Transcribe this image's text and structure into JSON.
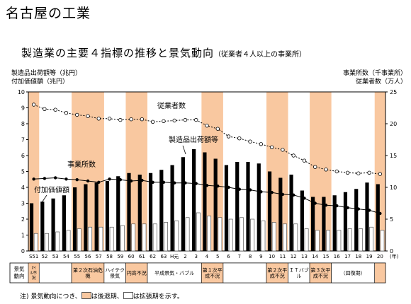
{
  "page": {
    "title": "名古屋の工業"
  },
  "chart": {
    "title": "製造業の主要４指標の推移と景気動向",
    "subtitle": "（従業者４人以上の事業所）",
    "left_axis_title_1": "製造品出荷額等（兆円）",
    "left_axis_title_2": "付加価値額（兆円）",
    "right_axis_title_1": "事業所数（千事業所）",
    "right_axis_title_2": "従業者数（万人）",
    "year_unit": "(年)",
    "row_label": "景気\n動向",
    "note": {
      "prefix": "注) 景気動向につき、",
      "recession": "は後退期、",
      "expansion": "は拡張期を示す。"
    }
  },
  "chart_data": {
    "type": "bar",
    "categories": [
      "S51",
      "52",
      "53",
      "54",
      "55",
      "56",
      "57",
      "58",
      "59",
      "60",
      "61",
      "62",
      "63",
      "H元",
      "2",
      "3",
      "4",
      "5",
      "6",
      "7",
      "8",
      "9",
      "10",
      "11",
      "12",
      "13",
      "14",
      "15",
      "16",
      "17",
      "18",
      "19",
      "20"
    ],
    "left_ylim": [
      0,
      10
    ],
    "left_yticks": [
      0,
      1,
      2,
      3,
      4,
      5,
      6,
      7,
      8,
      9,
      10
    ],
    "right_ylim": [
      0,
      25
    ],
    "right_yticks": [
      0,
      5,
      10,
      15,
      20,
      25
    ],
    "series": [
      {
        "name": "製造品出荷額等",
        "axis": "left",
        "kind": "bar",
        "color": "#000000",
        "values": [
          3.0,
          3.1,
          3.3,
          3.5,
          4.0,
          4.2,
          4.3,
          4.4,
          4.7,
          4.9,
          4.8,
          4.9,
          5.1,
          5.4,
          5.9,
          6.4,
          6.2,
          5.8,
          5.4,
          5.6,
          5.6,
          5.5,
          5.0,
          4.6,
          4.8,
          3.8,
          3.4,
          3.4,
          3.5,
          3.7,
          3.9,
          4.3,
          4.2
        ]
      },
      {
        "name": "付加価値額",
        "axis": "left",
        "kind": "bar",
        "color": "#ffffff",
        "values": [
          1.1,
          1.1,
          1.2,
          1.3,
          1.4,
          1.5,
          1.5,
          1.5,
          1.6,
          1.7,
          1.7,
          1.7,
          1.8,
          1.9,
          2.1,
          2.4,
          2.2,
          2.1,
          2.0,
          2.1,
          2.0,
          1.9,
          1.8,
          1.7,
          1.7,
          1.4,
          1.3,
          1.3,
          1.3,
          1.4,
          1.4,
          1.5,
          1.3
        ]
      },
      {
        "name": "従業者数",
        "axis": "right",
        "kind": "line",
        "style": "dotted",
        "values": [
          23,
          22.3,
          22.2,
          21.7,
          21.4,
          21.2,
          20.8,
          20.8,
          20.6,
          20.7,
          20.7,
          20.3,
          20.4,
          20.5,
          20.6,
          20.6,
          19.7,
          19.2,
          18.0,
          17.7,
          17.2,
          16.8,
          16.3,
          15.9,
          15.0,
          14.2,
          13.2,
          12.8,
          12.5,
          12.3,
          12.2,
          12.3,
          12.1
        ]
      },
      {
        "name": "事業所数",
        "axis": "right",
        "kind": "line",
        "style": "solid",
        "values": [
          11.3,
          11.4,
          11.5,
          11.3,
          11.2,
          11.0,
          10.8,
          11.3,
          11.2,
          11.0,
          11.1,
          10.8,
          10.8,
          10.7,
          10.7,
          10.6,
          10.3,
          10.2,
          10.0,
          9.7,
          9.6,
          9.3,
          9.2,
          8.9,
          8.8,
          8.3,
          7.5,
          7.2,
          7.1,
          6.8,
          6.6,
          6.4,
          5.9
        ]
      }
    ],
    "annotations": [
      {
        "text": "従業者数"
      },
      {
        "text": "製造品出荷額等"
      },
      {
        "text": "事業所数"
      },
      {
        "text": "付加価値額"
      }
    ],
    "cycles": [
      {
        "type": "recession",
        "start": 0,
        "end": 0,
        "label": "ｵｲﾙ不況"
      },
      {
        "type": "expansion",
        "start": 1,
        "end": 3,
        "label": ""
      },
      {
        "type": "recession",
        "start": 4,
        "end": 6,
        "label": "第２次石油危機"
      },
      {
        "type": "expansion",
        "start": 7,
        "end": 8,
        "label": "ハイテク景気"
      },
      {
        "type": "recession",
        "start": 9,
        "end": 10,
        "label": "円高不況"
      },
      {
        "type": "expansion",
        "start": 11,
        "end": 15,
        "label": "平成景気・バブル"
      },
      {
        "type": "recession",
        "start": 16,
        "end": 17,
        "label": "第１次平成不況"
      },
      {
        "type": "expansion",
        "start": 18,
        "end": 21,
        "label": ""
      },
      {
        "type": "recession",
        "start": 22,
        "end": 23,
        "label": "第２次平成不況"
      },
      {
        "type": "expansion",
        "start": 24,
        "end": 25,
        "label": "ＩＴバブル"
      },
      {
        "type": "recession",
        "start": 26,
        "end": 27,
        "label": "第３次平成不況"
      },
      {
        "type": "expansion",
        "start": 28,
        "end": 31,
        "label": "（回復期）"
      },
      {
        "type": "recession",
        "start": 32,
        "end": 32,
        "label": ""
      }
    ],
    "colors": {
      "recession": "#f9c8a0",
      "expansion": "#ffffff"
    }
  }
}
